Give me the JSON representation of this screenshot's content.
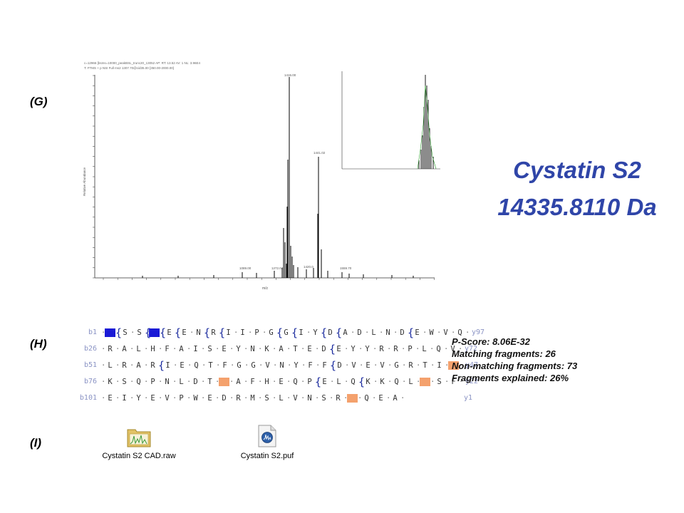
{
  "panels": {
    "g": "(G)",
    "h": "(H)",
    "i": "(I)"
  },
  "spectrum": {
    "header_line1": "c=12966 [bsms=10000_peakBSL_trunc20_13052 AP: RT: 13.52 AV: 1 NL: 3.96E4",
    "header_line2": "T: FTMS + p NSI Full ms2 1307.70@cid35.00 [350.00-2000.00]",
    "ylabel": "Relative Abundance",
    "xlabel": "m/z",
    "peak_labels": [
      "1415.00",
      "1441.02",
      "1089.00",
      "1272.04",
      "1420.0",
      "1559.70"
    ]
  },
  "title": {
    "protein": "Cystatin S2",
    "mass": "14335.8110 Da"
  },
  "sequence": {
    "rows": [
      {
        "left": "b1",
        "right": "y97",
        "residues": "MSSKEENRIIPGGIYDADLNDEWVQ"
      },
      {
        "left": "b26",
        "right": "y72",
        "residues": "RALHFAISEYNKATEDEYYRRPLQV"
      },
      {
        "left": "b51",
        "right": "y47",
        "residues": "LRARIEQTFGGVNYFFDVEVGRTIC"
      },
      {
        "left": "b76",
        "right": "y22",
        "residues": "KSQPNLDTCAFHEQPELQKKQLCSF"
      },
      {
        "left": "b101",
        "right": "y1",
        "residues": "EIYEVPWEDRMSLVNSRCQEA"
      }
    ]
  },
  "stats": {
    "pscore": "P-Score: 8.06E-32",
    "matching": "Matching fragments: 26",
    "nonmatching": "Non-matching fragments: 73",
    "explained": "Fragments explained: 26%"
  },
  "files": [
    {
      "name": "Cystatin S2 CAD.raw",
      "icon": "raw-file-folder-icon"
    },
    {
      "name": "Cystatin S2.puf",
      "icon": "puf-file-icon"
    }
  ],
  "colors": {
    "title": "#2f45a8",
    "blue_highlight": "#1a1ad6",
    "orange_highlight": "#f4a16d",
    "bracket": "#1f2fa0"
  }
}
